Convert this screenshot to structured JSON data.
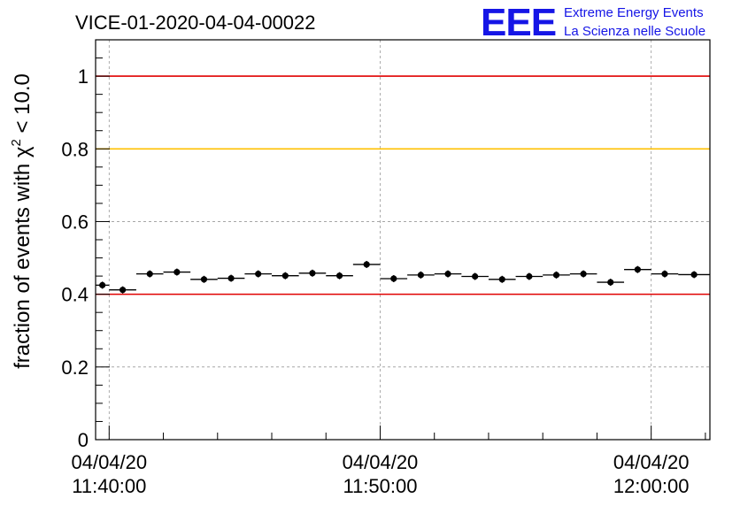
{
  "chart_data": {
    "type": "scatter",
    "title": "VICE-01-2020-04-04-00022",
    "ylabel": "fraction of events with χ² < 10.0",
    "ylabel_parts": {
      "main": "fraction of events with χ",
      "sup": "2",
      "rest": " < 10.0"
    },
    "xlabel": "",
    "x_axis": {
      "type": "time",
      "range": [
        "2020-04-04 11:39:30",
        "2020-04-04 12:02:10"
      ],
      "ticks": [
        {
          "date": "04/04/20",
          "time": "11:40:00",
          "value": "2020-04-04 11:40:00"
        },
        {
          "date": "04/04/20",
          "time": "11:50:00",
          "value": "2020-04-04 11:50:00"
        },
        {
          "date": "04/04/20",
          "time": "12:00:00",
          "value": "2020-04-04 12:00:00"
        }
      ]
    },
    "ylim": [
      0,
      1.1
    ],
    "yticks": [
      "0",
      "0.2",
      "0.4",
      "0.6",
      "0.8",
      "1"
    ],
    "grid": true,
    "reference_lines": [
      {
        "y": 1.0,
        "color": "#e00000"
      },
      {
        "y": 0.8,
        "color": "#ffc000"
      },
      {
        "y": 0.4,
        "color": "#e00000"
      }
    ],
    "series": [
      {
        "color": "#000000",
        "points": [
          {
            "start": "11:39:30",
            "end": "11:40:00",
            "y": 0.425
          },
          {
            "start": "11:40:00",
            "end": "11:41:00",
            "y": 0.412
          },
          {
            "start": "11:41:00",
            "end": "11:42:00",
            "y": 0.456
          },
          {
            "start": "11:42:00",
            "end": "11:43:00",
            "y": 0.461
          },
          {
            "start": "11:43:00",
            "end": "11:44:00",
            "y": 0.441
          },
          {
            "start": "11:44:00",
            "end": "11:45:00",
            "y": 0.444
          },
          {
            "start": "11:45:00",
            "end": "11:46:00",
            "y": 0.456
          },
          {
            "start": "11:46:00",
            "end": "11:47:00",
            "y": 0.451
          },
          {
            "start": "11:47:00",
            "end": "11:48:00",
            "y": 0.458
          },
          {
            "start": "11:48:00",
            "end": "11:49:00",
            "y": 0.451
          },
          {
            "start": "11:49:00",
            "end": "11:50:00",
            "y": 0.482
          },
          {
            "start": "11:50:00",
            "end": "11:51:00",
            "y": 0.443
          },
          {
            "start": "11:51:00",
            "end": "11:52:00",
            "y": 0.453
          },
          {
            "start": "11:52:00",
            "end": "11:53:00",
            "y": 0.456
          },
          {
            "start": "11:53:00",
            "end": "11:54:00",
            "y": 0.449
          },
          {
            "start": "11:54:00",
            "end": "11:55:00",
            "y": 0.441
          },
          {
            "start": "11:55:00",
            "end": "11:56:00",
            "y": 0.449
          },
          {
            "start": "11:56:00",
            "end": "11:57:00",
            "y": 0.453
          },
          {
            "start": "11:57:00",
            "end": "11:58:00",
            "y": 0.456
          },
          {
            "start": "11:58:00",
            "end": "11:59:00",
            "y": 0.433
          },
          {
            "start": "11:59:00",
            "end": "12:00:00",
            "y": 0.468
          },
          {
            "start": "12:00:00",
            "end": "12:01:00",
            "y": 0.456
          },
          {
            "start": "12:01:00",
            "end": "12:02:10",
            "y": 0.454
          }
        ]
      }
    ]
  },
  "logo": {
    "mark": "EEE",
    "line1": "Extreme Energy Events",
    "line2": "La Scienza nelle Scuole",
    "color": "#1515e6"
  }
}
